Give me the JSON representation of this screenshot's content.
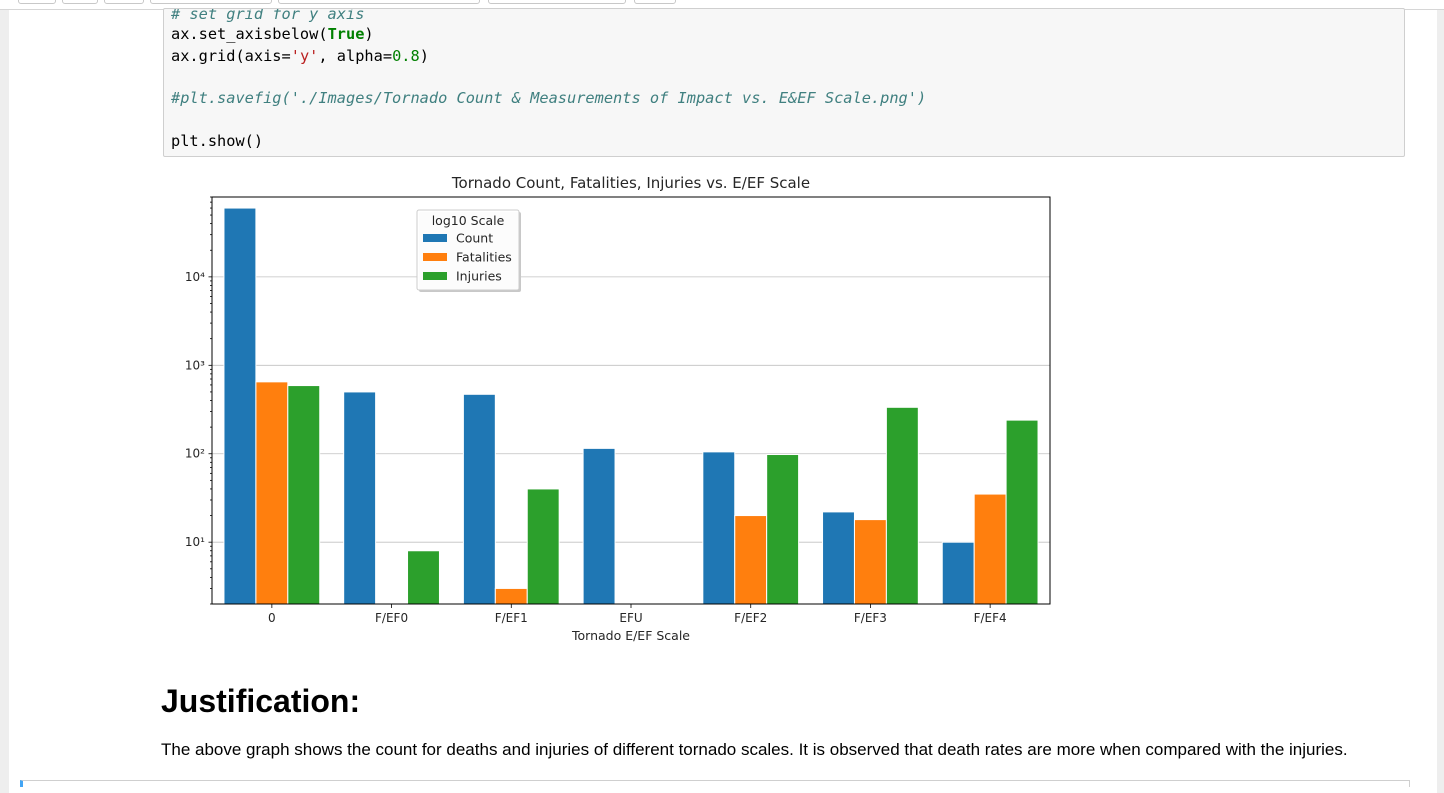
{
  "code_cell": {
    "lines": [
      [
        {
          "t": "comment",
          "v": "# set grid for y axis"
        }
      ],
      [
        {
          "t": "plain",
          "v": "ax.set_axisbelow("
        },
        {
          "t": "kw",
          "v": "True"
        },
        {
          "t": "plain",
          "v": ")"
        }
      ],
      [
        {
          "t": "plain",
          "v": "ax.grid(axis="
        },
        {
          "t": "str",
          "v": "'y'"
        },
        {
          "t": "plain",
          "v": ", alpha="
        },
        {
          "t": "num",
          "v": "0.8"
        },
        {
          "t": "plain",
          "v": ")"
        }
      ],
      [],
      [
        {
          "t": "comment",
          "v": "#plt.savefig('./Images/Tornado Count & Measurements of Impact vs. E&EF Scale.png')"
        }
      ],
      [],
      [
        {
          "t": "plain",
          "v": "plt.show()"
        }
      ]
    ]
  },
  "chart_data": {
    "type": "bar",
    "title": "Tornado Count, Fatalities, Injuries vs. E/EF Scale",
    "xlabel": "Tornado E/EF Scale",
    "ylabel": "",
    "yscale": "log",
    "ylim": [
      2,
      80000
    ],
    "ytick_values": [
      10,
      100,
      1000,
      10000
    ],
    "ytick_labels": [
      "10¹",
      "10²",
      "10³",
      "10⁴"
    ],
    "grid": "y",
    "legend": {
      "title": "log10 Scale",
      "placement": "upper-left"
    },
    "categories": [
      "0",
      "F/EF0",
      "F/EF1",
      "EFU",
      "F/EF2",
      "F/EF3",
      "F/EF4"
    ],
    "series": [
      {
        "name": "Count",
        "color": "#1f77b4",
        "values": [
          60000,
          500,
          470,
          115,
          105,
          22,
          10
        ]
      },
      {
        "name": "Fatalities",
        "color": "#ff7f0e",
        "values": [
          650,
          null,
          3,
          null,
          20,
          18,
          35
        ]
      },
      {
        "name": "Injuries",
        "color": "#2ca02c",
        "values": [
          590,
          8,
          40,
          null,
          98,
          335,
          240
        ]
      }
    ]
  },
  "markdown": {
    "heading": "Justification:",
    "text": "The above graph shows the count for deaths and injuries of different tornado scales. It is observed that death rates are more when compared with the injuries."
  }
}
